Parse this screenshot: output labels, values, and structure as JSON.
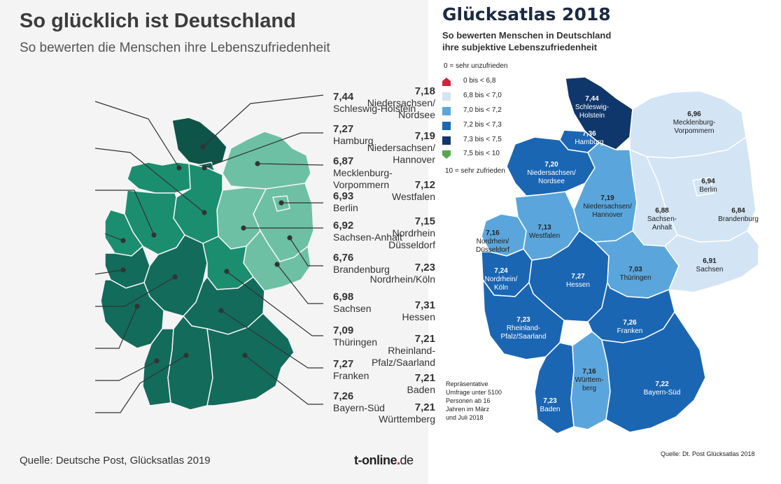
{
  "left": {
    "title": "So glücklich ist Deutschland",
    "subtitle": "So bewerten die Menschen ihre Lebenszufriedenheit",
    "source": "Quelle: Deutsche Post, Glücksatlas 2019",
    "brand_main": "t-online",
    "brand_dot": ".",
    "brand_tld": "de",
    "colors": {
      "dark": "#0f5448",
      "mid": "#1b8e6f",
      "deep": "#136b5b",
      "light": "#6dc0a4",
      "line": "#333333"
    },
    "labels_left": [
      {
        "value": "7,18",
        "name": "Niedersachsen/ Nordsee"
      },
      {
        "value": "7,19",
        "name": "Niedersachsen/ Hannover"
      },
      {
        "value": "7,12",
        "name": "Westfalen"
      },
      {
        "value": "7,15",
        "name": "Nordrhein Düsseldorf"
      },
      {
        "value": "7,23",
        "name": "Nordrhein/Köln"
      },
      {
        "value": "7,31",
        "name": "Hessen"
      },
      {
        "value": "7,21",
        "name": "Rheinland- Pfalz/Saarland"
      },
      {
        "value": "7,21",
        "name": "Baden"
      },
      {
        "value": "7,21",
        "name": "Württemberg"
      }
    ],
    "labels_right": [
      {
        "value": "7,44",
        "name": "Schleswig-Holstein"
      },
      {
        "value": "7,27",
        "name": "Hamburg"
      },
      {
        "value": "6,87",
        "name": "Mecklenburg- Vorpommern"
      },
      {
        "value": "6,93",
        "name": "Berlin"
      },
      {
        "value": "6,92",
        "name": "Sachsen-Anhalt"
      },
      {
        "value": "6,76",
        "name": "Brandenburg"
      },
      {
        "value": "6,98",
        "name": "Sachsen"
      },
      {
        "value": "7,09",
        "name": "Thüringen"
      },
      {
        "value": "7,27",
        "name": "Franken"
      },
      {
        "value": "7,26",
        "name": "Bayern-Süd"
      }
    ]
  },
  "right": {
    "title": "Glücksatlas 2018",
    "subtitle_1": "So bewerten Menschen in Deutschland",
    "subtitle_2": "ihre subjektive Lebenszufriedenheit",
    "scale_top": "0 = sehr unzufrieden",
    "scale_bottom": "10 = sehr zufrieden",
    "legend": [
      {
        "label": "0 bis < 6,8",
        "color": "#d2233c"
      },
      {
        "label": "6,8 bis < 7,0",
        "color": "#d3e4f4"
      },
      {
        "label": "7,0 bis < 7,2",
        "color": "#5aa6dc"
      },
      {
        "label": "7,2 bis < 7,3",
        "color": "#1b66b3"
      },
      {
        "label": "7,3 bis < 7,5",
        "color": "#10376c"
      },
      {
        "label": "7,5 bis < 10",
        "color": "#57a84c"
      }
    ],
    "note": [
      "Repräsentative",
      "Umfrage unter 5100",
      "Personen ab 16",
      "Jahren im März",
      "und Juli 2018"
    ],
    "source": "Quelle: Dt. Post Glücksatlas 2018",
    "regions": [
      {
        "value": "7,44",
        "name": "Schleswig- Holstein"
      },
      {
        "value": "7,36",
        "name": "Hamburg"
      },
      {
        "value": "6,96",
        "name": "Mecklenburg- Vorpommern"
      },
      {
        "value": "7,20",
        "name": "Niedersachsen/ Nordsee"
      },
      {
        "value": "7,19",
        "name": "Niedersachsen/ Hannover"
      },
      {
        "value": "6,94",
        "name": "Berlin"
      },
      {
        "value": "6,88",
        "name": "Sachsen- Anhalt"
      },
      {
        "value": "6,84",
        "name": "Brandenburg"
      },
      {
        "value": "7,16",
        "name": "Nordrhein/ Düsseldorf"
      },
      {
        "value": "7,13",
        "name": "Westfalen"
      },
      {
        "value": "7,24",
        "name": "Nordrhein/ Köln"
      },
      {
        "value": "7,27",
        "name": "Hessen"
      },
      {
        "value": "7,03",
        "name": "Thüringen"
      },
      {
        "value": "6,91",
        "name": "Sachsen"
      },
      {
        "value": "7,23",
        "name": "Rheinland- Pfalz/Saarland"
      },
      {
        "value": "7,26",
        "name": "Franken"
      },
      {
        "value": "7,16",
        "name": "Württem- berg"
      },
      {
        "value": "7,22",
        "name": "Bayern-Süd"
      },
      {
        "value": "7,23",
        "name": "Baden"
      }
    ]
  }
}
